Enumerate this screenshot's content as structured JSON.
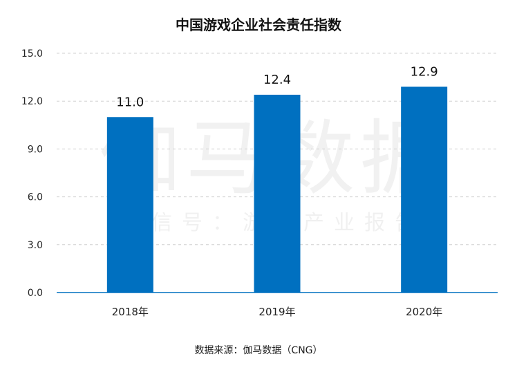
{
  "chart_data": {
    "type": "bar",
    "title": "中国游戏企业社会责任指数",
    "categories": [
      "2018年",
      "2019年",
      "2020年"
    ],
    "values": [
      11.0,
      12.4,
      12.9
    ],
    "value_labels": [
      "11.0",
      "12.4",
      "12.9"
    ],
    "ylim": [
      0,
      15
    ],
    "yticks": [
      "0.0",
      "3.0",
      "6.0",
      "9.0",
      "12.0",
      "15.0"
    ],
    "grid": true,
    "bar_color": "#0070C0",
    "source": "数据来源：伽马数据（CNG）"
  },
  "watermark": {
    "main": "伽马数据",
    "sub": "微信号：游戏产业报告"
  }
}
